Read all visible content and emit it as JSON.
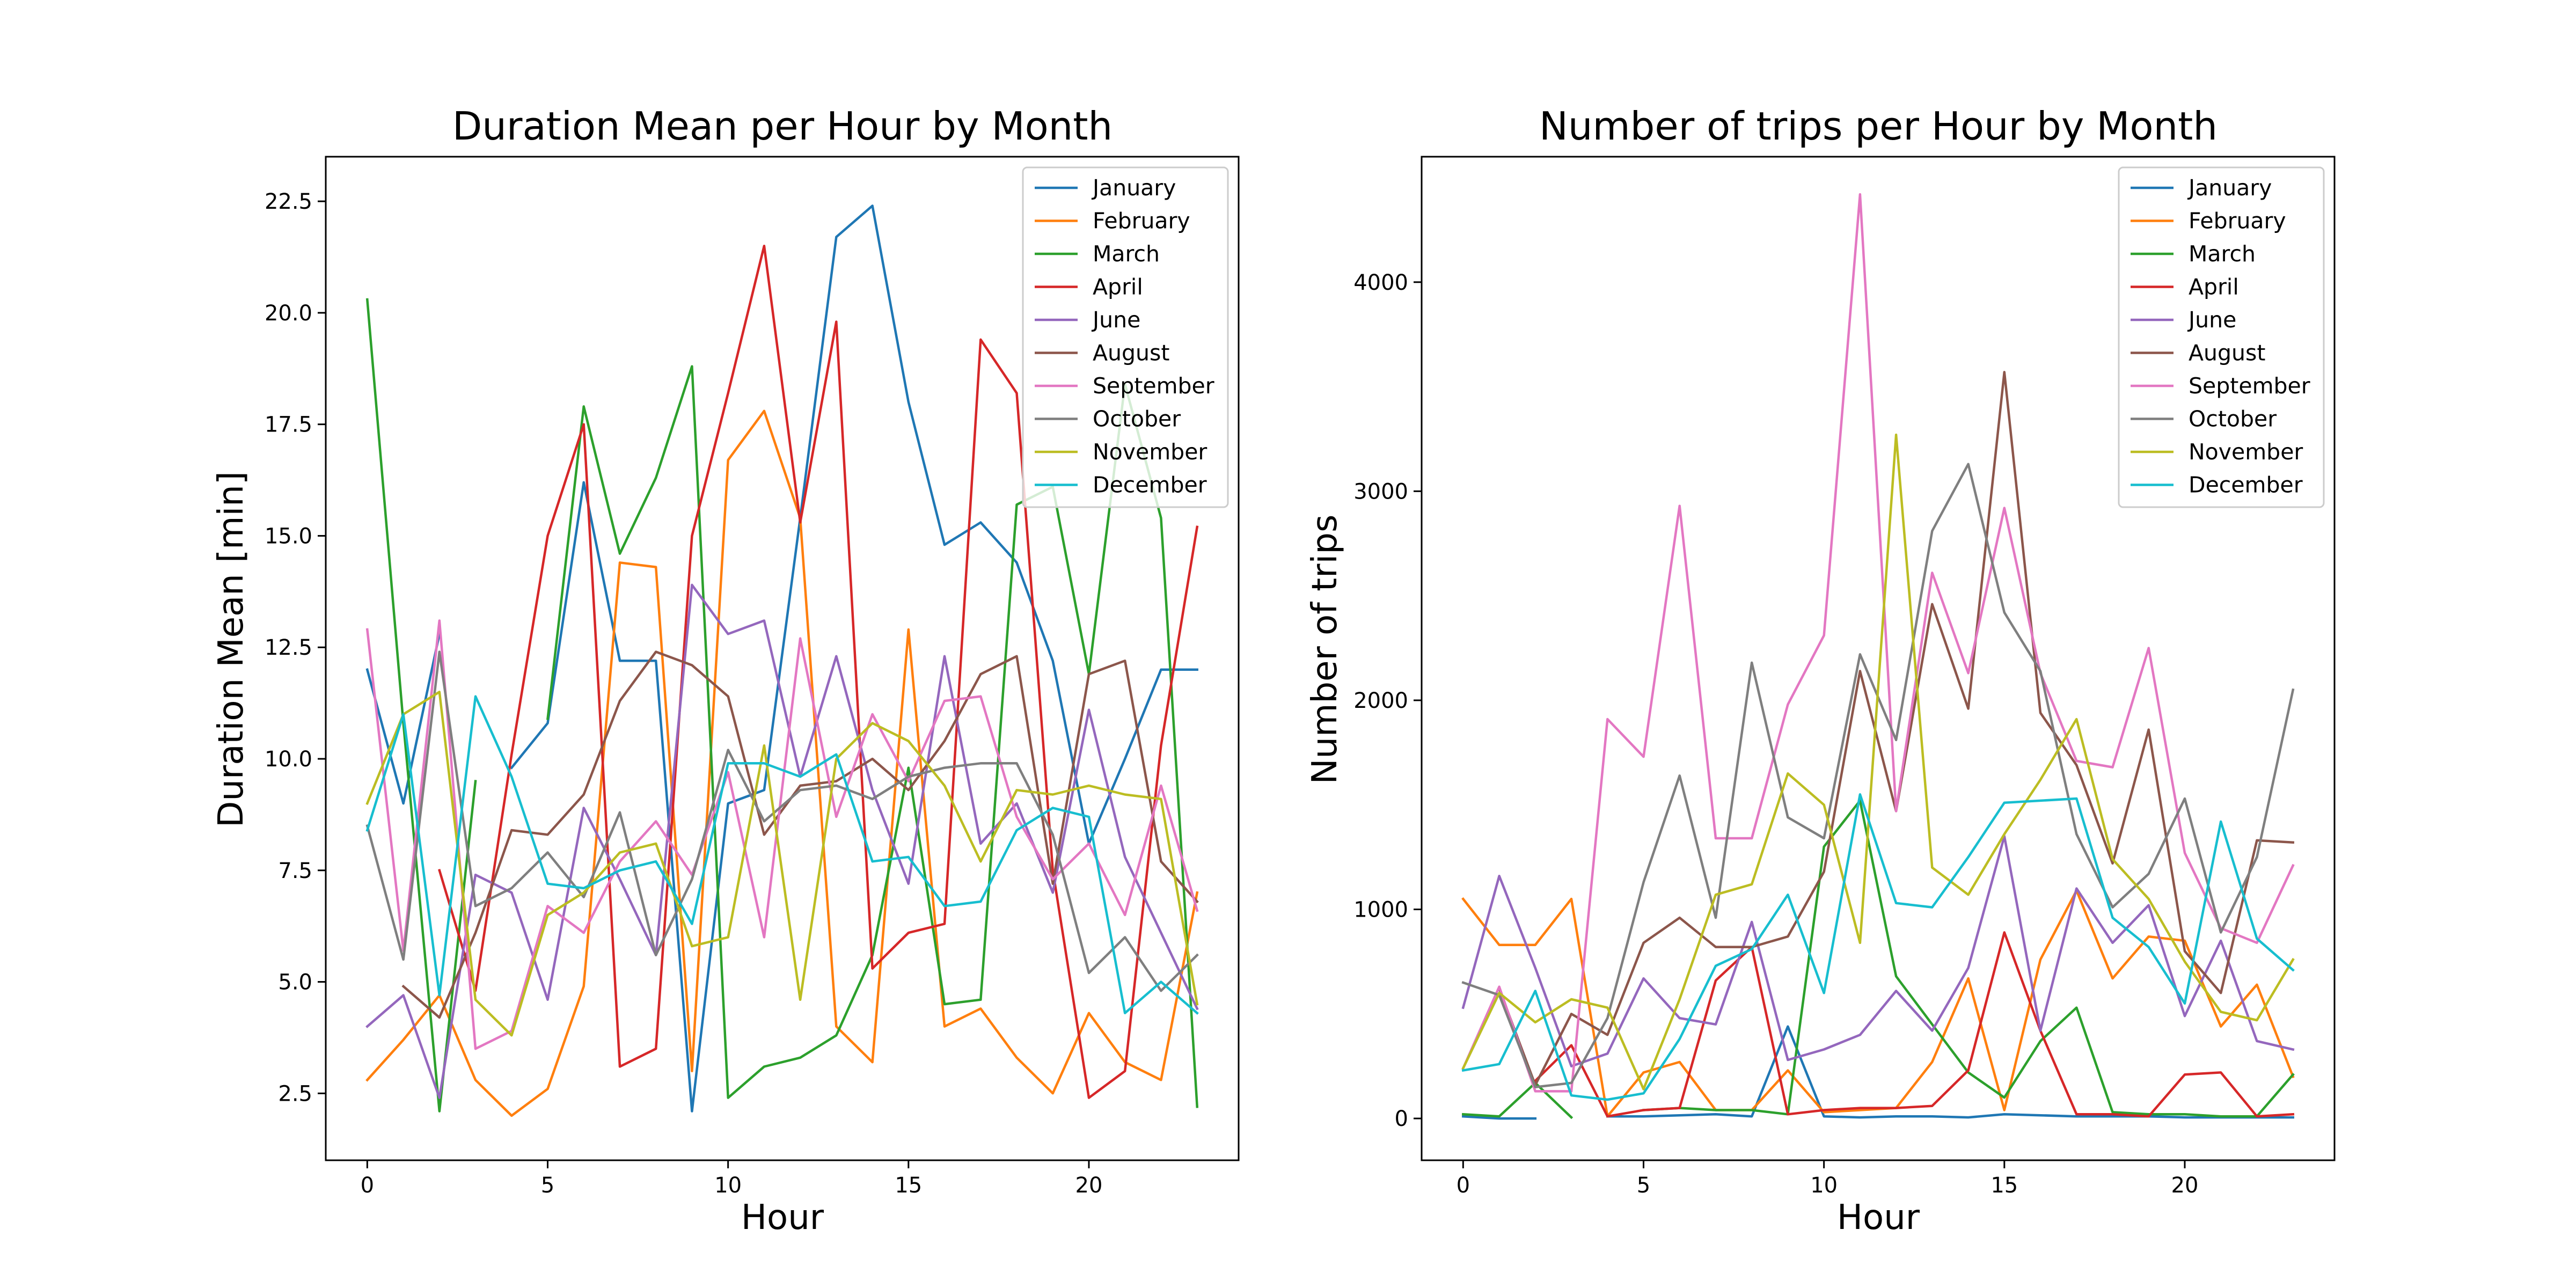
{
  "figure": {
    "background": "#ffffff"
  },
  "chart_data": [
    {
      "type": "line",
      "title": "Duration Mean per Hour by Month",
      "xlabel": "Hour",
      "ylabel": "Duration Mean [min]",
      "xlim": [
        -1.15,
        24.15
      ],
      "ylim": [
        1.0,
        23.5
      ],
      "xticks": [
        0,
        5,
        10,
        15,
        20
      ],
      "yticks": [
        2.5,
        5.0,
        7.5,
        10.0,
        12.5,
        15.0,
        17.5,
        20.0,
        22.5
      ],
      "ytick_labels": [
        "2.5",
        "5.0",
        "7.5",
        "10.0",
        "12.5",
        "15.0",
        "17.5",
        "20.0",
        "22.5"
      ],
      "grid": false,
      "legend_position": "upper right",
      "x": [
        0,
        1,
        2,
        3,
        4,
        5,
        6,
        7,
        8,
        9,
        10,
        11,
        12,
        13,
        14,
        15,
        16,
        17,
        18,
        19,
        20,
        21,
        22,
        23
      ],
      "series": [
        {
          "name": "January",
          "color": "#1f77b4",
          "values": [
            12.0,
            9.0,
            12.8,
            null,
            9.8,
            10.8,
            16.2,
            12.2,
            12.2,
            2.1,
            9.0,
            9.3,
            15.4,
            21.7,
            22.4,
            18.0,
            14.8,
            15.3,
            14.4,
            12.2,
            8.1,
            10.0,
            12.0,
            12.0
          ]
        },
        {
          "name": "February",
          "color": "#ff7f0e",
          "values": [
            2.8,
            3.7,
            4.7,
            2.8,
            2.0,
            2.6,
            4.9,
            14.4,
            14.3,
            3.0,
            16.7,
            17.8,
            15.4,
            4.0,
            3.2,
            12.9,
            4.0,
            4.4,
            3.3,
            2.5,
            4.3,
            3.2,
            2.8,
            7.0
          ]
        },
        {
          "name": "March",
          "color": "#2ca02c",
          "values": [
            20.3,
            10.8,
            2.1,
            9.5,
            null,
            10.9,
            17.9,
            14.6,
            16.3,
            18.8,
            2.4,
            3.1,
            3.3,
            3.8,
            5.6,
            9.8,
            4.5,
            4.6,
            15.7,
            16.1,
            11.9,
            18.4,
            15.4,
            2.2
          ]
        },
        {
          "name": "April",
          "color": "#d62728",
          "values": [
            null,
            null,
            7.5,
            4.8,
            10.1,
            15.0,
            17.5,
            3.1,
            3.5,
            15.0,
            18.2,
            21.5,
            15.3,
            19.8,
            5.3,
            6.1,
            6.3,
            19.4,
            18.2,
            7.5,
            2.4,
            3.0,
            10.3,
            15.2
          ]
        },
        {
          "name": "June",
          "color": "#9467bd",
          "values": [
            4.0,
            4.7,
            2.4,
            7.4,
            7.0,
            4.6,
            8.9,
            7.3,
            5.6,
            13.9,
            12.8,
            13.1,
            9.6,
            12.3,
            9.3,
            7.2,
            12.3,
            8.1,
            9.0,
            7.0,
            11.1,
            7.8,
            6.1,
            4.4
          ]
        },
        {
          "name": "August",
          "color": "#8c564b",
          "values": [
            null,
            4.9,
            4.2,
            6.1,
            8.4,
            8.3,
            9.2,
            11.3,
            12.4,
            12.1,
            11.4,
            8.3,
            9.4,
            9.5,
            10.0,
            9.3,
            10.4,
            11.9,
            12.3,
            7.2,
            11.9,
            12.2,
            7.7,
            6.8
          ]
        },
        {
          "name": "September",
          "color": "#e377c2",
          "values": [
            12.9,
            5.7,
            13.1,
            3.5,
            3.9,
            6.7,
            6.1,
            7.7,
            8.6,
            7.4,
            9.7,
            6.0,
            12.7,
            8.7,
            11.0,
            9.5,
            11.3,
            11.4,
            8.7,
            7.3,
            8.1,
            6.5,
            9.4,
            6.6
          ]
        },
        {
          "name": "October",
          "color": "#7f7f7f",
          "values": [
            8.5,
            5.5,
            12.4,
            6.7,
            7.1,
            7.9,
            6.9,
            8.8,
            5.6,
            7.3,
            10.2,
            8.6,
            9.3,
            9.4,
            9.1,
            9.6,
            9.8,
            9.9,
            9.9,
            8.3,
            5.2,
            6.0,
            4.8,
            5.6
          ]
        },
        {
          "name": "November",
          "color": "#bcbd22",
          "values": [
            9.0,
            11.0,
            11.5,
            4.6,
            3.8,
            6.5,
            7.0,
            7.9,
            8.1,
            5.8,
            6.0,
            10.3,
            4.6,
            10.0,
            10.8,
            10.4,
            9.4,
            7.7,
            9.3,
            9.2,
            9.4,
            9.2,
            9.1,
            4.5
          ]
        },
        {
          "name": "December",
          "color": "#17becf",
          "values": [
            8.4,
            11.0,
            4.7,
            11.4,
            9.6,
            7.2,
            7.1,
            7.5,
            7.7,
            6.3,
            9.9,
            9.9,
            9.6,
            10.1,
            7.7,
            7.8,
            6.7,
            6.8,
            8.4,
            8.9,
            8.7,
            4.3,
            5.0,
            4.3
          ]
        }
      ]
    },
    {
      "type": "line",
      "title": "Number of trips per Hour by Month",
      "xlabel": "Hour",
      "ylabel": "Number of trips",
      "xlim": [
        -1.15,
        24.15
      ],
      "ylim": [
        -200,
        4600
      ],
      "xticks": [
        0,
        5,
        10,
        15,
        20
      ],
      "yticks": [
        0,
        1000,
        2000,
        3000,
        4000
      ],
      "ytick_labels": [
        "0",
        "1000",
        "2000",
        "3000",
        "4000"
      ],
      "grid": false,
      "legend_position": "upper right",
      "x": [
        0,
        1,
        2,
        3,
        4,
        5,
        6,
        7,
        8,
        9,
        10,
        11,
        12,
        13,
        14,
        15,
        16,
        17,
        18,
        19,
        20,
        21,
        22,
        23
      ],
      "series": [
        {
          "name": "January",
          "color": "#1f77b4",
          "values": [
            10,
            0,
            0,
            null,
            10,
            10,
            15,
            20,
            10,
            440,
            10,
            5,
            10,
            10,
            5,
            20,
            15,
            10,
            10,
            10,
            5,
            5,
            5,
            5
          ]
        },
        {
          "name": "February",
          "color": "#ff7f0e",
          "values": [
            1050,
            830,
            830,
            1050,
            10,
            220,
            270,
            40,
            40,
            230,
            30,
            40,
            50,
            270,
            670,
            40,
            760,
            1090,
            670,
            870,
            850,
            440,
            640,
            200
          ]
        },
        {
          "name": "March",
          "color": "#2ca02c",
          "values": [
            20,
            10,
            170,
            5,
            null,
            40,
            50,
            40,
            40,
            20,
            1300,
            1520,
            680,
            450,
            220,
            100,
            370,
            530,
            30,
            20,
            20,
            10,
            10,
            210
          ]
        },
        {
          "name": "April",
          "color": "#d62728",
          "values": [
            null,
            null,
            180,
            350,
            10,
            40,
            50,
            660,
            820,
            20,
            40,
            50,
            50,
            60,
            230,
            890,
            420,
            20,
            20,
            10,
            210,
            220,
            10,
            20
          ]
        },
        {
          "name": "June",
          "color": "#9467bd",
          "values": [
            530,
            1160,
            720,
            250,
            310,
            670,
            480,
            450,
            940,
            280,
            330,
            400,
            610,
            420,
            720,
            1350,
            420,
            1100,
            840,
            1020,
            490,
            850,
            370,
            330
          ]
        },
        {
          "name": "August",
          "color": "#8c564b",
          "values": [
            null,
            620,
            160,
            500,
            400,
            840,
            960,
            820,
            820,
            870,
            1180,
            2140,
            1470,
            2460,
            1960,
            3570,
            1940,
            1690,
            1220,
            1860,
            800,
            600,
            1330,
            1320
          ]
        },
        {
          "name": "September",
          "color": "#e377c2",
          "values": [
            240,
            630,
            130,
            130,
            1910,
            1730,
            2930,
            1340,
            1340,
            1980,
            2310,
            4420,
            1470,
            2610,
            2130,
            2920,
            2130,
            1710,
            1680,
            2250,
            1270,
            910,
            840,
            1210
          ]
        },
        {
          "name": "October",
          "color": "#7f7f7f",
          "values": [
            650,
            590,
            150,
            170,
            480,
            1130,
            1640,
            960,
            2180,
            1440,
            1340,
            2220,
            1810,
            2810,
            3130,
            2420,
            2140,
            1360,
            1010,
            1170,
            1530,
            890,
            1250,
            2050
          ]
        },
        {
          "name": "November",
          "color": "#bcbd22",
          "values": [
            240,
            600,
            460,
            570,
            530,
            140,
            570,
            1070,
            1120,
            1650,
            1500,
            840,
            3270,
            1200,
            1070,
            1360,
            1620,
            1910,
            1240,
            1050,
            750,
            510,
            470,
            760
          ]
        },
        {
          "name": "December",
          "color": "#17becf",
          "values": [
            230,
            260,
            610,
            110,
            90,
            120,
            380,
            730,
            810,
            1070,
            600,
            1550,
            1030,
            1010,
            1250,
            1510,
            1520,
            1530,
            960,
            820,
            550,
            1420,
            860,
            710
          ]
        }
      ]
    }
  ]
}
